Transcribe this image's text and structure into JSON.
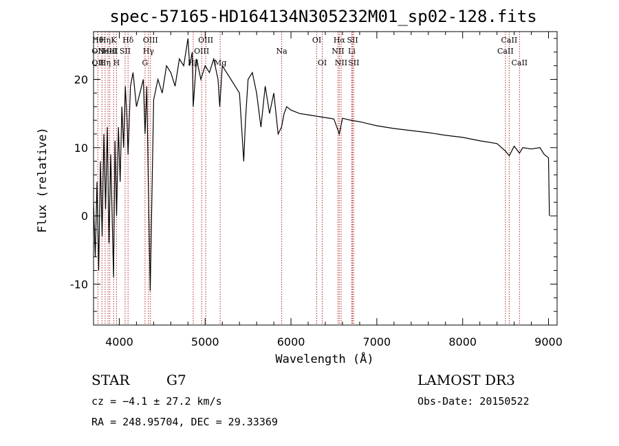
{
  "chart_data": {
    "type": "line",
    "title": "spec-57165-HD164134N305232M01_sp02-128.fits",
    "xlabel": "Wavelength (Å)",
    "ylabel": "Flux (relative)",
    "xlim": [
      3700,
      9100
    ],
    "ylim": [
      -16,
      27
    ],
    "x_ticks": [
      4000,
      5000,
      6000,
      7000,
      8000,
      9000
    ],
    "y_ticks": [
      -10,
      0,
      10,
      20
    ],
    "grid": false,
    "series": [
      {
        "color": "#000000",
        "x": [
          3700,
          3720,
          3740,
          3760,
          3780,
          3800,
          3820,
          3840,
          3860,
          3880,
          3900,
          3920,
          3933,
          3950,
          3968,
          3990,
          4010,
          4030,
          4050,
          4070,
          4090,
          4102,
          4130,
          4160,
          4200,
          4240,
          4280,
          4300,
          4320,
          4340,
          4360,
          4400,
          4450,
          4500,
          4550,
          4600,
          4650,
          4700,
          4750,
          4800,
          4820,
          4850,
          4861,
          4900,
          4950,
          5000,
          5050,
          5100,
          5150,
          5170,
          5200,
          5250,
          5300,
          5350,
          5400,
          5450,
          5470,
          5500,
          5550,
          5600,
          5650,
          5700,
          5750,
          5800,
          5850,
          5890,
          5920,
          5950,
          6000,
          6100,
          6200,
          6300,
          6400,
          6500,
          6563,
          6600,
          6700,
          6800,
          6900,
          7000,
          7200,
          7400,
          7600,
          7800,
          8000,
          8200,
          8400,
          8498,
          8542,
          8600,
          8662,
          8700,
          8800,
          8900,
          8950,
          9000,
          9010
        ],
        "y": [
          2,
          -6,
          5,
          -8,
          8,
          -3,
          12,
          1,
          13,
          -4,
          9,
          -2,
          -9,
          11,
          0,
          13,
          5,
          16,
          10,
          19,
          14,
          9,
          19,
          21,
          16,
          18,
          20,
          12,
          19,
          3,
          -11,
          17,
          20,
          18,
          22,
          21,
          19,
          23,
          22,
          26,
          22,
          24,
          16,
          23,
          20,
          22,
          21,
          23,
          20,
          16,
          22,
          21,
          20,
          19,
          18,
          8,
          14,
          20,
          21,
          18,
          13,
          19,
          15,
          18,
          12,
          13,
          15,
          16,
          15.5,
          15,
          14.8,
          14.6,
          14.4,
          14.2,
          12,
          14.3,
          14,
          13.8,
          13.5,
          13.2,
          12.8,
          12.5,
          12.2,
          11.8,
          11.5,
          11,
          10.6,
          9.5,
          8.8,
          10.2,
          9.2,
          10,
          9.8,
          10,
          9,
          8.5,
          0
        ]
      }
    ],
    "line_markers": [
      {
        "wavelength": 3750,
        "labels": [
          "Hθ",
          "OII",
          "OII"
        ]
      },
      {
        "wavelength": 3798,
        "labels": [
          "",
          "",
          ""
        ]
      },
      {
        "wavelength": 3835,
        "labels": [
          "Hη",
          "",
          "Hη"
        ]
      },
      {
        "wavelength": 3869,
        "labels": [
          "",
          "NeIII",
          ""
        ]
      },
      {
        "wavelength": 3889,
        "labels": [
          "",
          "HeI",
          ""
        ]
      },
      {
        "wavelength": 3934,
        "labels": [
          "K",
          "",
          ""
        ]
      },
      {
        "wavelength": 3968,
        "labels": [
          "",
          "",
          "H"
        ]
      },
      {
        "wavelength": 4068,
        "labels": [
          "",
          "SII",
          ""
        ]
      },
      {
        "wavelength": 4102,
        "labels": [
          "Hδ",
          "",
          ""
        ]
      },
      {
        "wavelength": 4300,
        "labels": [
          "",
          "",
          "G"
        ]
      },
      {
        "wavelength": 4340,
        "labels": [
          "",
          "Hγ",
          ""
        ]
      },
      {
        "wavelength": 4363,
        "labels": [
          "OIII",
          "",
          ""
        ]
      },
      {
        "wavelength": 4861,
        "labels": [
          "",
          "",
          "Hβ"
        ]
      },
      {
        "wavelength": 4959,
        "labels": [
          "",
          "OIII",
          ""
        ]
      },
      {
        "wavelength": 5007,
        "labels": [
          "OIII",
          "",
          ""
        ]
      },
      {
        "wavelength": 5175,
        "labels": [
          "",
          "",
          "Mg"
        ]
      },
      {
        "wavelength": 5892,
        "labels": [
          "",
          "Na",
          ""
        ]
      },
      {
        "wavelength": 6300,
        "labels": [
          "OI",
          "",
          ""
        ]
      },
      {
        "wavelength": 6364,
        "labels": [
          "",
          "",
          "OI"
        ]
      },
      {
        "wavelength": 6548,
        "labels": [
          "",
          "NII",
          ""
        ]
      },
      {
        "wavelength": 6563,
        "labels": [
          "Hα",
          "",
          ""
        ]
      },
      {
        "wavelength": 6584,
        "labels": [
          "",
          "",
          "NII"
        ]
      },
      {
        "wavelength": 6708,
        "labels": [
          "",
          "Li",
          ""
        ]
      },
      {
        "wavelength": 6717,
        "labels": [
          "SII",
          "",
          ""
        ]
      },
      {
        "wavelength": 6731,
        "labels": [
          "",
          "",
          "SII"
        ]
      },
      {
        "wavelength": 8498,
        "labels": [
          "",
          "CaII",
          ""
        ]
      },
      {
        "wavelength": 8542,
        "labels": [
          "CaII",
          "",
          ""
        ]
      },
      {
        "wavelength": 8662,
        "labels": [
          "",
          "",
          "CaII"
        ]
      }
    ]
  },
  "info": {
    "object_class": "STAR",
    "subclass": "G7",
    "survey": "LAMOST DR3",
    "cz": "cz = −4.1 ± 27.2 km/s",
    "obs_date": "Obs-Date: 20150522",
    "coords": "RA = 248.95704, DEC =  29.33369"
  }
}
